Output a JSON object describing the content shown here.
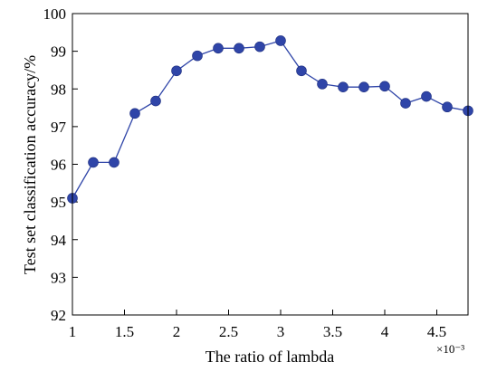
{
  "chart_data": {
    "type": "line",
    "title": "",
    "xlabel": "The ratio of lambda",
    "ylabel": "Test set classification accuracy/%",
    "x_exponent_label": "×10⁻³",
    "xlim": [
      1,
      4.8
    ],
    "ylim": [
      92,
      100
    ],
    "x_ticks": [
      1,
      1.5,
      2,
      2.5,
      3,
      3.5,
      4,
      4.5
    ],
    "x_tick_labels": [
      "1",
      "1.5",
      "2",
      "2.5",
      "3",
      "3.5",
      "4",
      "4.5"
    ],
    "y_ticks": [
      92,
      93,
      94,
      95,
      96,
      97,
      98,
      99,
      100
    ],
    "y_tick_labels": [
      "92",
      "93",
      "94",
      "95",
      "96",
      "97",
      "98",
      "99",
      "100"
    ],
    "grid": false,
    "legend": "none",
    "series": [
      {
        "color": "#2f45a8",
        "marker": "circle",
        "x": [
          1.0,
          1.2,
          1.4,
          1.6,
          1.8,
          2.0,
          2.2,
          2.4,
          2.6,
          2.8,
          3.0,
          3.2,
          3.4,
          3.6,
          3.8,
          4.0,
          4.2,
          4.4,
          4.6,
          4.8
        ],
        "y": [
          95.1,
          96.05,
          96.05,
          97.35,
          97.68,
          98.48,
          98.88,
          99.08,
          99.08,
          99.12,
          99.28,
          98.48,
          98.13,
          98.05,
          98.05,
          98.07,
          97.62,
          97.8,
          97.52,
          97.42
        ]
      }
    ]
  }
}
